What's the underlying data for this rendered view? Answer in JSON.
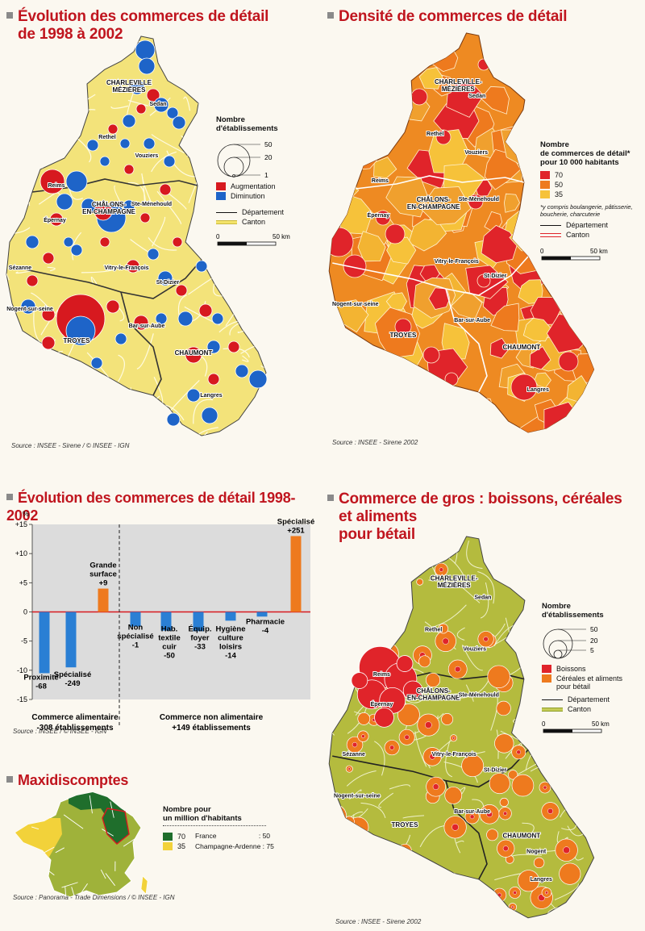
{
  "map1": {
    "title_l1": "Évolution des commerces de détail",
    "title_l2": "de 1998 à 2002",
    "source": "Source : INSEE - Sirene / © INSEE - IGN",
    "legend": {
      "header_l1": "Nombre",
      "header_l2": "d'établissements",
      "sizes": [
        "50",
        "20",
        "1"
      ],
      "items": [
        {
          "label": "Augmentation",
          "color": "#d7191f"
        },
        {
          "label": "Diminution",
          "color": "#1e64c8"
        }
      ],
      "lines": [
        "Département",
        "Canton"
      ],
      "scale": [
        "0",
        "50 km"
      ]
    },
    "cities": [
      "CHARLEVILLE",
      "MÉZIÈRES",
      "Sedan",
      "Rethel",
      "Vouziers",
      "Reims",
      "CHÂLONS-",
      "EN-CHAMPAGNE",
      "Ste-Ménehould",
      "Épernay",
      "Sézanne",
      "Vitry-le-François",
      "St-Dizier",
      "Nogent-sur-seine",
      "TROYES",
      "Bar-sur-Aube",
      "CHAUMONT",
      "Langres"
    ]
  },
  "map2": {
    "title": "Densité de commerces de détail",
    "source": "Source : INSEE - Sirene 2002",
    "legend": {
      "header_l1": "Nombre",
      "header_l2": "de commerces de détail*",
      "header_l3": "pour 10 000 habitants",
      "classes": [
        {
          "label": "70",
          "color": "#e0242a"
        },
        {
          "label": "50",
          "color": "#ee7a1e"
        },
        {
          "label": "35",
          "color": "#f6c23a"
        }
      ],
      "note_l1": "*y compris boulangerie, pâtisserie,",
      "note_l2": "boucherie, charcuterie",
      "lines": [
        "Département",
        "Canton"
      ],
      "scale": [
        "0",
        "50 km"
      ]
    },
    "cities": [
      "CHARLEVILLE-",
      "MÉZIÈRES",
      "Sedan",
      "Rethel",
      "Vouziers",
      "Reims",
      "CHÂLONS-",
      "EN-CHAMPAGNE",
      "Ste-Ménehould",
      "Épernay",
      "Vitry-le-François",
      "St-Dizier",
      "Nogent-sur-seine",
      "TROYES",
      "Bar-sur-Aube",
      "CHAUMONT",
      "Langres"
    ]
  },
  "chart_data": {
    "type": "bar",
    "title": "Évolution des commerces de détail 1998-2002",
    "ylabel": "%",
    "ylim": [
      -15,
      15
    ],
    "yticks": [
      "+15",
      "+10",
      "+5",
      "0",
      "-5",
      "-10",
      "-15"
    ],
    "bars": [
      {
        "label_lines": [
          "Proximité",
          "-68"
        ],
        "value": -10.5,
        "color": "#2a7fd4"
      },
      {
        "label_lines": [
          "Spécialisé",
          "-249"
        ],
        "value": -9.5,
        "color": "#2a7fd4"
      },
      {
        "label_lines": [
          "Grande",
          "surface",
          "+9"
        ],
        "value": 4,
        "color": "#ee7a1e"
      },
      {
        "label_lines": [
          "Non",
          "spécialisé",
          "-1"
        ],
        "value": -2.5,
        "color": "#2a7fd4"
      },
      {
        "label_lines": [
          "Hab.",
          "textile",
          "cuir",
          "-50"
        ],
        "value": -3.2,
        "color": "#2a7fd4"
      },
      {
        "label_lines": [
          "Équip.",
          "foyer",
          "-33"
        ],
        "value": -3.3,
        "color": "#2a7fd4"
      },
      {
        "label_lines": [
          "Hygiène",
          "culture",
          "loisirs",
          "-14"
        ],
        "value": -1.5,
        "color": "#2a7fd4"
      },
      {
        "label_lines": [
          "Pharmacie",
          "-4"
        ],
        "value": -0.8,
        "color": "#2a7fd4"
      },
      {
        "label_lines": [
          "Spécialisé",
          "+251"
        ],
        "value": 13,
        "color": "#ee7a1e"
      }
    ],
    "groups": [
      {
        "line1": "Commerce alimentaire",
        "line2": "-308 établissements"
      },
      {
        "line1": "Commerce non alimentaire",
        "line2": "+149 établissements"
      }
    ],
    "source": "Source : INSEE / © INSEE - IGN"
  },
  "maxi": {
    "title": "Maxidiscomptes",
    "legend_h1": "Nombre pour",
    "legend_h2": "un million d'habitants",
    "classes": [
      {
        "label": "70",
        "color": "#1f6e2c"
      },
      {
        "label": "35",
        "color": "#f2d23a"
      }
    ],
    "stats": [
      {
        "name": "France",
        "value": ": 50"
      },
      {
        "name": "Champagne-Ardenne",
        "value": ": 75"
      }
    ],
    "source": "Source : Panorama - Trade Dimensions / © INSEE - IGN"
  },
  "map4": {
    "title_l1": "Commerce de gros : boissons, céréales",
    "title_l2": "et aliments",
    "title_l3": "pour bétail",
    "source": "Source : INSEE - Sirene 2002",
    "legend": {
      "header_l1": "Nombre",
      "header_l2": "d'établissements",
      "sizes": [
        "50",
        "20",
        "5"
      ],
      "items": [
        {
          "label": "Boissons",
          "color": "#e0242a"
        },
        {
          "label": "Céréales et aliments",
          "color": "#ee7a1e"
        }
      ],
      "item2_l2": "pour bétail",
      "lines": [
        "Département",
        "Canton"
      ],
      "scale": [
        "0",
        "50 km"
      ]
    },
    "cities": [
      "CHARLEVILLE-",
      "MÉZIÈRES",
      "Sedan",
      "Rethel",
      "Vouziers",
      "Reims",
      "Épernay",
      "CHÂLONS-",
      "EN-CHAMPAGNE",
      "Ste-Ménehould",
      "Sézanne",
      "Vitry-le-François",
      "St-Dizier",
      "Nogent-sur-seine",
      "TROYES",
      "Bar-sur-Aube",
      "CHAUMONT",
      "Nogent",
      "Langres"
    ]
  }
}
